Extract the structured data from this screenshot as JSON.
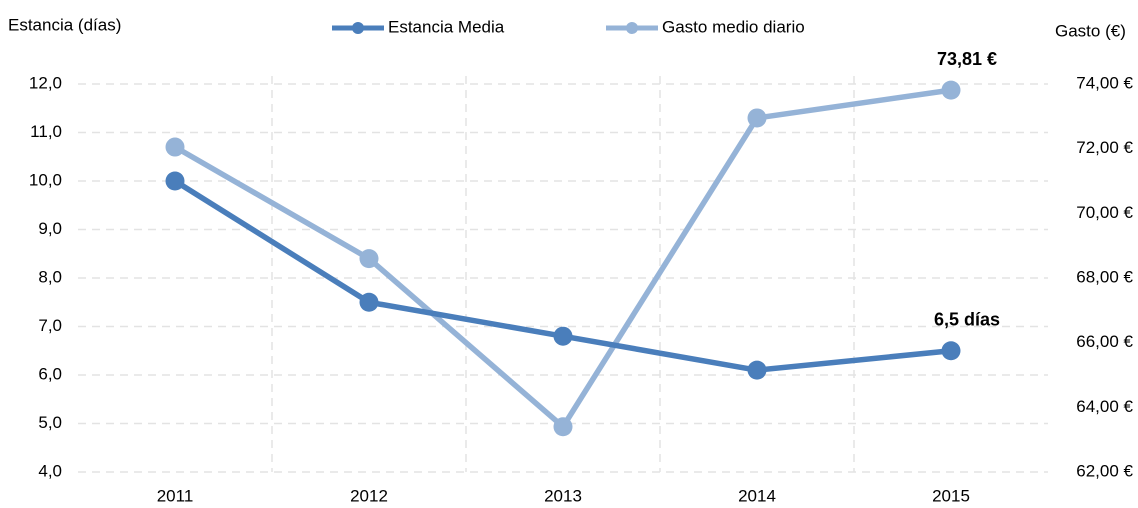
{
  "chart_data": {
    "type": "line",
    "y_label": "Estancia (días)",
    "y2_label": "Gasto (€)",
    "categories": [
      "2011",
      "2012",
      "2013",
      "2014",
      "2015"
    ],
    "series": [
      {
        "name": "Estancia Media",
        "color": "#4a7ebb",
        "values": [
          10.0,
          7.5,
          6.8,
          6.1,
          6.5
        ],
        "value_labels": [
          null,
          null,
          null,
          null,
          "6,5 días"
        ]
      },
      {
        "name": "Gasto medio diario",
        "color": "#95b3d7",
        "axis": "y2",
        "values": [
          72.05,
          68.6,
          63.4,
          72.95,
          73.81
        ],
        "value_labels": [
          null,
          null,
          null,
          null,
          "73,81 €"
        ]
      }
    ],
    "ylim": [
      4,
      12
    ],
    "yticks": [
      {
        "value": 4,
        "label": "4,0"
      },
      {
        "value": 5,
        "label": "5,0"
      },
      {
        "value": 6,
        "label": "6,0"
      },
      {
        "value": 7,
        "label": "7,0"
      },
      {
        "value": 8,
        "label": "8,0"
      },
      {
        "value": 9,
        "label": "9,0"
      },
      {
        "value": 10,
        "label": "10,0"
      },
      {
        "value": 11,
        "label": "11,0"
      },
      {
        "value": 12,
        "label": "12,0"
      }
    ],
    "y2lim": [
      62,
      74
    ],
    "y2ticks": [
      {
        "value": 62,
        "label": "62,00 €"
      },
      {
        "value": 64,
        "label": "64,00 €"
      },
      {
        "value": 66,
        "label": "66,00 €"
      },
      {
        "value": 68,
        "label": "68,00 €"
      },
      {
        "value": 70,
        "label": "70,00 €"
      },
      {
        "value": 72,
        "label": "72,00 €"
      },
      {
        "value": 74,
        "label": "74,00 €"
      }
    ],
    "grid": true,
    "legend": "top"
  }
}
